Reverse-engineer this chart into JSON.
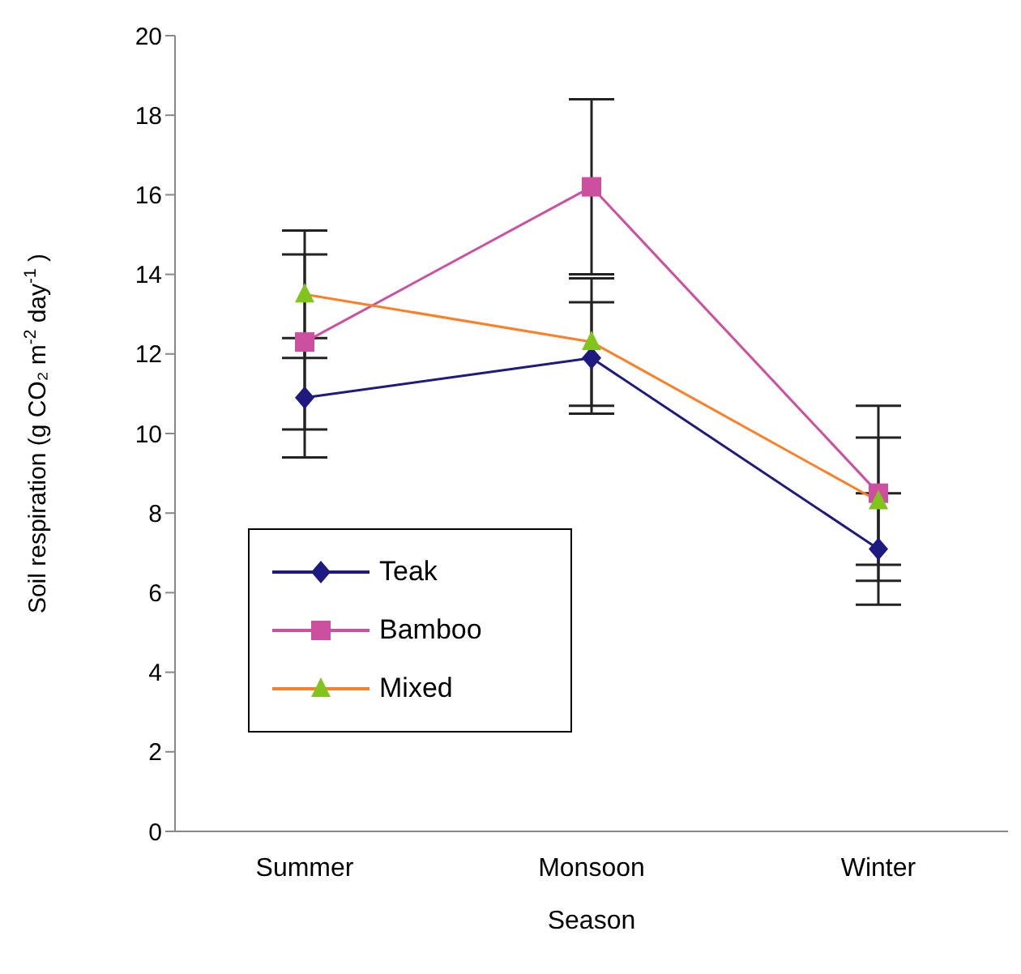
{
  "chart_data": {
    "type": "line",
    "xlabel": "Season",
    "ylabel": "Soil respiration (g CO₂ m$^{-2}$ day$^{-1}$)",
    "categories": [
      "Summer",
      "Monsoon",
      "Winter"
    ],
    "series": [
      {
        "name": "Teak",
        "color": "#1f1a80",
        "marker": "diamond",
        "values": [
          10.9,
          11.9,
          7.1
        ],
        "errors": [
          1.5,
          1.4,
          1.4
        ]
      },
      {
        "name": "Bamboo",
        "color": "#cc4fa0",
        "marker": "square",
        "values": [
          12.3,
          16.2,
          8.5
        ],
        "errors": [
          2.2,
          2.2,
          2.2
        ]
      },
      {
        "name": "Mixed",
        "color": "#ff7f27",
        "colors": [
          "#80c41c",
          "#80c41c",
          "#80c41c"
        ],
        "marker": "triangle",
        "values": [
          13.5,
          12.3,
          8.3
        ],
        "errors": [
          1.6,
          1.6,
          1.6
        ]
      }
    ],
    "ylim": [
      0,
      20
    ],
    "yticks": [
      0,
      2,
      4,
      6,
      8,
      10,
      12,
      14,
      16,
      18,
      20
    ],
    "grid": false,
    "legend": "bottom left",
    "line_style": "solid"
  }
}
